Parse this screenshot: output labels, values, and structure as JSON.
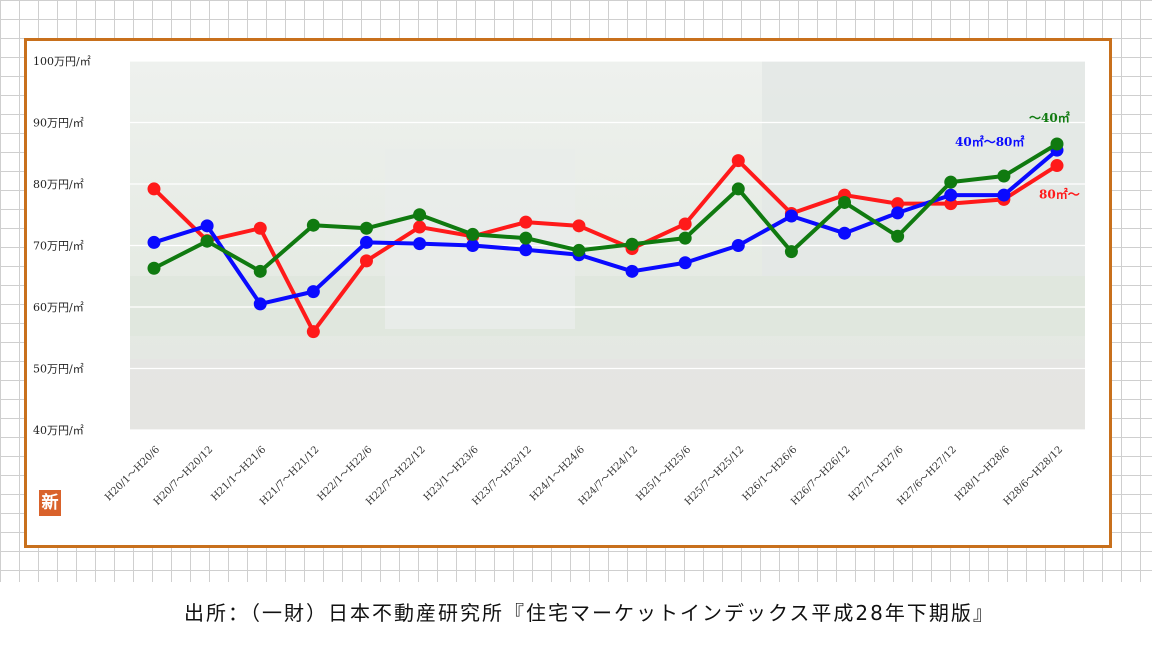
{
  "source_note": "出所：（一財）日本不動産研究所『住宅マーケットインデックス平成28年下期版』",
  "logo_char": "新",
  "chart_data": {
    "type": "line",
    "y_tick_labels": [
      "100万円/㎡",
      "90万円/㎡",
      "80万円/㎡",
      "70万円/㎡",
      "60万円/㎡",
      "50万円/㎡",
      "40万円/㎡"
    ],
    "y_ticks": [
      100,
      90,
      80,
      70,
      60,
      50,
      40
    ],
    "ylim": [
      40,
      100
    ],
    "grid": true,
    "categories": [
      "H20/1〜H20/6",
      "H20/7〜H20/12",
      "H21/1〜H21/6",
      "H21/7〜H21/12",
      "H22/1〜H22/6",
      "H22/7〜H22/12",
      "H23/1〜H23/6",
      "H23/7〜H23/12",
      "H24/1〜H24/6",
      "H24/7〜H24/12",
      "H25/1〜H25/6",
      "H25/7〜H25/12",
      "H26/1〜H26/6",
      "H26/7〜H26/12",
      "H27/1〜H27/6",
      "H27/6〜H27/12",
      "H28/1〜H28/6",
      "H28/6〜H28/12"
    ],
    "series": [
      {
        "name": "40㎡〜80㎡",
        "color": "#0a0aff",
        "values": [
          70.5,
          73.2,
          60.5,
          62.5,
          70.5,
          70.3,
          70.0,
          69.3,
          68.5,
          65.8,
          67.2,
          70.0,
          74.8,
          72.0,
          75.3,
          78.2,
          78.2,
          85.5
        ]
      },
      {
        "name": "80㎡〜",
        "color": "#ff1a1a",
        "values": [
          79.2,
          70.8,
          72.8,
          56.0,
          67.5,
          73.0,
          71.5,
          73.8,
          73.2,
          69.5,
          73.5,
          83.8,
          75.2,
          78.2,
          76.8,
          76.8,
          77.5,
          83.0
        ]
      },
      {
        "name": "〜40㎡",
        "color": "#107a10",
        "values": [
          66.3,
          70.7,
          65.8,
          73.3,
          72.8,
          75.0,
          71.8,
          71.2,
          69.2,
          70.2,
          71.2,
          79.2,
          69.0,
          77.0,
          71.5,
          80.3,
          81.3,
          86.5
        ]
      }
    ]
  }
}
